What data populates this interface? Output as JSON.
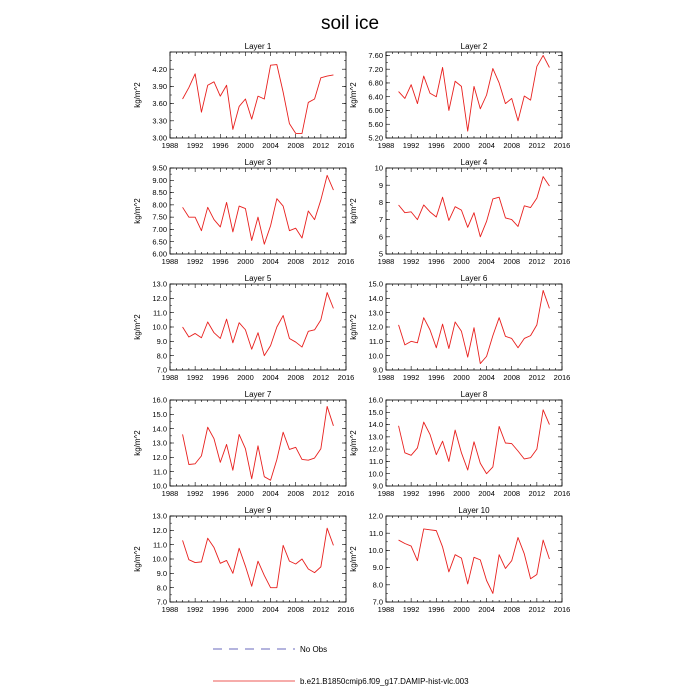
{
  "figure_title": "soil ice",
  "legend": [
    {
      "label": "No Obs",
      "style": "dashed",
      "color": "#3a3aa6"
    },
    {
      "label": "b.e21.B1850cmip6.f09_g17.DAMIP-hist-vlc.003",
      "style": "solid",
      "color": "#e8201e"
    }
  ],
  "series_color": "#e8201e",
  "chart_data": [
    {
      "type": "line",
      "title": "Layer 1",
      "ylabel": "kg/m^2",
      "x": [
        1990,
        1991,
        1992,
        1993,
        1994,
        1995,
        1996,
        1997,
        1998,
        1999,
        2000,
        2001,
        2002,
        2003,
        2004,
        2005,
        2006,
        2007,
        2008,
        2009,
        2010,
        2011,
        2012,
        2013,
        2014
      ],
      "y": [
        3.68,
        3.88,
        4.12,
        3.45,
        3.92,
        3.98,
        3.73,
        3.92,
        3.15,
        3.55,
        3.68,
        3.33,
        3.73,
        3.68,
        4.27,
        4.28,
        3.8,
        3.25,
        3.08,
        3.08,
        3.62,
        3.68,
        4.05,
        4.08,
        4.1
      ],
      "xlim": [
        1988,
        2016
      ],
      "ylim": [
        3.0,
        4.5
      ],
      "xticks": [
        "1988",
        "1992",
        "1996",
        "2000",
        "2004",
        "2008",
        "2012",
        "2016"
      ],
      "yticks": [
        "3.00",
        "3.30",
        "3.60",
        "3.90",
        "4.20"
      ]
    },
    {
      "type": "line",
      "title": "Layer 2",
      "ylabel": "kg/m^2",
      "x": [
        1990,
        1991,
        1992,
        1993,
        1994,
        1995,
        1996,
        1997,
        1998,
        1999,
        2000,
        2001,
        2002,
        2003,
        2004,
        2005,
        2006,
        2007,
        2008,
        2009,
        2010,
        2011,
        2012,
        2013,
        2014
      ],
      "y": [
        6.55,
        6.35,
        6.75,
        6.2,
        7.0,
        6.5,
        6.4,
        7.25,
        6.0,
        6.85,
        6.7,
        5.4,
        6.7,
        6.05,
        6.45,
        7.22,
        6.8,
        6.2,
        6.35,
        5.7,
        6.42,
        6.3,
        7.28,
        7.6,
        7.25
      ],
      "xlim": [
        1988,
        2016
      ],
      "ylim": [
        5.2,
        7.7
      ],
      "xticks": [
        "1988",
        "1992",
        "1996",
        "2000",
        "2004",
        "2008",
        "2012",
        "2016"
      ],
      "yticks": [
        "5.20",
        "5.60",
        "6.00",
        "6.40",
        "6.80",
        "7.20",
        "7.60"
      ]
    },
    {
      "type": "line",
      "title": "Layer 3",
      "ylabel": "kg/m^2",
      "x": [
        1990,
        1991,
        1992,
        1993,
        1994,
        1995,
        1996,
        1997,
        1998,
        1999,
        2000,
        2001,
        2002,
        2003,
        2004,
        2005,
        2006,
        2007,
        2008,
        2009,
        2010,
        2011,
        2012,
        2013,
        2014
      ],
      "y": [
        7.9,
        7.5,
        7.5,
        6.95,
        7.9,
        7.4,
        7.1,
        8.1,
        6.9,
        7.95,
        7.85,
        6.55,
        7.5,
        6.4,
        7.15,
        8.25,
        7.95,
        6.95,
        7.05,
        6.65,
        7.75,
        7.4,
        8.2,
        9.2,
        8.6
      ],
      "xlim": [
        1988,
        2016
      ],
      "ylim": [
        6.0,
        9.5
      ],
      "xticks": [
        "1988",
        "1992",
        "1996",
        "2000",
        "2004",
        "2008",
        "2012",
        "2016"
      ],
      "yticks": [
        "6.00",
        "6.50",
        "7.00",
        "7.50",
        "8.00",
        "8.50",
        "9.00",
        "9.50"
      ]
    },
    {
      "type": "line",
      "title": "Layer 4",
      "ylabel": "kg/m^2",
      "x": [
        1990,
        1991,
        1992,
        1993,
        1994,
        1995,
        1996,
        1997,
        1998,
        1999,
        2000,
        2001,
        2002,
        2003,
        2004,
        2005,
        2006,
        2007,
        2008,
        2009,
        2010,
        2011,
        2012,
        2013,
        2014
      ],
      "y": [
        7.85,
        7.4,
        7.45,
        7.0,
        7.85,
        7.45,
        7.15,
        8.3,
        6.95,
        7.75,
        7.55,
        6.55,
        7.4,
        6.0,
        6.9,
        8.2,
        8.3,
        7.1,
        7.0,
        6.6,
        7.8,
        7.7,
        8.25,
        9.5,
        8.95
      ],
      "xlim": [
        1988,
        2016
      ],
      "ylim": [
        5,
        10
      ],
      "xticks": [
        "1988",
        "1992",
        "1996",
        "2000",
        "2004",
        "2008",
        "2012",
        "2016"
      ],
      "yticks": [
        "5",
        "6",
        "7",
        "8",
        "9",
        "10"
      ]
    },
    {
      "type": "line",
      "title": "Layer 5",
      "ylabel": "kg/m^2",
      "x": [
        1990,
        1991,
        1992,
        1993,
        1994,
        1995,
        1996,
        1997,
        1998,
        1999,
        2000,
        2001,
        2002,
        2003,
        2004,
        2005,
        2006,
        2007,
        2008,
        2009,
        2010,
        2011,
        2012,
        2013,
        2014
      ],
      "y": [
        10.0,
        9.3,
        9.55,
        9.25,
        10.35,
        9.6,
        9.2,
        10.55,
        8.9,
        10.3,
        9.8,
        8.45,
        9.6,
        8.0,
        8.7,
        10.0,
        10.8,
        9.2,
        8.95,
        8.6,
        9.7,
        9.8,
        10.5,
        12.4,
        11.3
      ],
      "xlim": [
        1988,
        2016
      ],
      "ylim": [
        7.0,
        13.0
      ],
      "xticks": [
        "1988",
        "1992",
        "1996",
        "2000",
        "2004",
        "2008",
        "2012",
        "2016"
      ],
      "yticks": [
        "7.0",
        "8.0",
        "9.0",
        "10.0",
        "11.0",
        "12.0",
        "13.0"
      ]
    },
    {
      "type": "line",
      "title": "Layer 6",
      "ylabel": "kg/m^2",
      "x": [
        1990,
        1991,
        1992,
        1993,
        1994,
        1995,
        1996,
        1997,
        1998,
        1999,
        2000,
        2001,
        2002,
        2003,
        2004,
        2005,
        2006,
        2007,
        2008,
        2009,
        2010,
        2011,
        2012,
        2013,
        2014
      ],
      "y": [
        12.15,
        10.75,
        11.0,
        10.9,
        12.65,
        11.8,
        10.55,
        12.2,
        10.5,
        12.35,
        11.7,
        9.9,
        11.95,
        9.45,
        9.95,
        11.4,
        12.65,
        11.35,
        11.2,
        10.55,
        11.2,
        11.4,
        12.15,
        14.55,
        13.3
      ],
      "xlim": [
        1988,
        2016
      ],
      "ylim": [
        9.0,
        15.0
      ],
      "xticks": [
        "1988",
        "1992",
        "1996",
        "2000",
        "2004",
        "2008",
        "2012",
        "2016"
      ],
      "yticks": [
        "9.0",
        "10.0",
        "11.0",
        "12.0",
        "13.0",
        "14.0",
        "15.0"
      ]
    },
    {
      "type": "line",
      "title": "Layer 7",
      "ylabel": "kg/m^2",
      "x": [
        1990,
        1991,
        1992,
        1993,
        1994,
        1995,
        1996,
        1997,
        1998,
        1999,
        2000,
        2001,
        2002,
        2003,
        2004,
        2005,
        2006,
        2007,
        2008,
        2009,
        2010,
        2011,
        2012,
        2013,
        2014
      ],
      "y": [
        13.6,
        11.5,
        11.55,
        12.1,
        14.1,
        13.3,
        11.65,
        12.9,
        11.1,
        13.6,
        12.6,
        10.5,
        12.8,
        10.65,
        10.4,
        11.85,
        13.75,
        12.55,
        12.7,
        11.85,
        11.8,
        11.95,
        12.6,
        15.55,
        14.2
      ],
      "xlim": [
        1988,
        2016
      ],
      "ylim": [
        10.0,
        16.0
      ],
      "xticks": [
        "1988",
        "1992",
        "1996",
        "2000",
        "2004",
        "2008",
        "2012",
        "2016"
      ],
      "yticks": [
        "10.0",
        "11.0",
        "12.0",
        "13.0",
        "14.0",
        "15.0",
        "16.0"
      ]
    },
    {
      "type": "line",
      "title": "Layer 8",
      "ylabel": "kg/m^2",
      "x": [
        1990,
        1991,
        1992,
        1993,
        1994,
        1995,
        1996,
        1997,
        1998,
        1999,
        2000,
        2001,
        2002,
        2003,
        2004,
        2005,
        2006,
        2007,
        2008,
        2009,
        2010,
        2011,
        2012,
        2013,
        2014
      ],
      "y": [
        13.9,
        11.7,
        11.5,
        12.1,
        14.2,
        13.2,
        11.55,
        12.65,
        11.0,
        13.55,
        11.7,
        10.3,
        12.6,
        10.85,
        10.0,
        10.55,
        13.85,
        12.5,
        12.45,
        11.85,
        11.2,
        11.3,
        12.0,
        15.2,
        14.0
      ],
      "xlim": [
        1988,
        2016
      ],
      "ylim": [
        9.0,
        16.0
      ],
      "xticks": [
        "1988",
        "1992",
        "1996",
        "2000",
        "2004",
        "2008",
        "2012",
        "2016"
      ],
      "yticks": [
        "9.0",
        "10.0",
        "11.0",
        "12.0",
        "13.0",
        "14.0",
        "15.0",
        "16.0"
      ]
    },
    {
      "type": "line",
      "title": "Layer 9",
      "ylabel": "kg/m^2",
      "x": [
        1990,
        1991,
        1992,
        1993,
        1994,
        1995,
        1996,
        1997,
        1998,
        1999,
        2000,
        2001,
        2002,
        2003,
        2004,
        2005,
        2006,
        2007,
        2008,
        2009,
        2010,
        2011,
        2012,
        2013,
        2014
      ],
      "y": [
        11.3,
        9.95,
        9.75,
        9.8,
        11.45,
        10.8,
        9.7,
        9.9,
        9.0,
        10.75,
        9.5,
        8.1,
        9.85,
        8.85,
        8.0,
        8.0,
        10.95,
        9.85,
        9.65,
        10.0,
        9.3,
        9.05,
        9.45,
        12.15,
        10.95
      ],
      "xlim": [
        1988,
        2016
      ],
      "ylim": [
        7.0,
        13.0
      ],
      "xticks": [
        "1988",
        "1992",
        "1996",
        "2000",
        "2004",
        "2008",
        "2012",
        "2016"
      ],
      "yticks": [
        "7.0",
        "8.0",
        "9.0",
        "10.0",
        "11.0",
        "12.0",
        "13.0"
      ]
    },
    {
      "type": "line",
      "title": "Layer 10",
      "ylabel": "kg/m^2",
      "x": [
        1990,
        1991,
        1992,
        1993,
        1994,
        1995,
        1996,
        1997,
        1998,
        1999,
        2000,
        2001,
        2002,
        2003,
        2004,
        2005,
        2006,
        2007,
        2008,
        2009,
        2010,
        2011,
        2012,
        2013,
        2014
      ],
      "y": [
        10.6,
        10.4,
        10.25,
        9.4,
        11.25,
        11.2,
        11.15,
        10.2,
        8.75,
        9.75,
        9.55,
        8.05,
        9.6,
        9.45,
        8.25,
        7.5,
        9.75,
        8.95,
        9.4,
        10.75,
        9.8,
        8.35,
        8.6,
        10.6,
        9.5
      ],
      "xlim": [
        1988,
        2016
      ],
      "ylim": [
        7.0,
        12.0
      ],
      "xticks": [
        "1988",
        "1992",
        "1996",
        "2000",
        "2004",
        "2008",
        "2012",
        "2016"
      ],
      "yticks": [
        "7.0",
        "8.0",
        "9.0",
        "10.0",
        "11.0",
        "12.0"
      ]
    }
  ]
}
